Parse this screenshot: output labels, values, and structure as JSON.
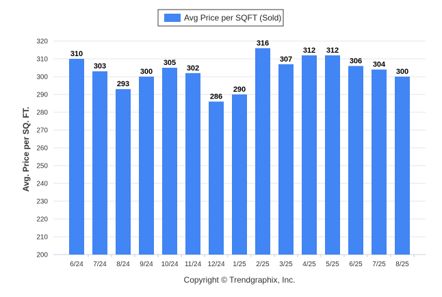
{
  "colors": {
    "bar": "#4285f4",
    "grid": "#e6e6e6",
    "axis_line": "#c0d0e0"
  },
  "chart_data": {
    "type": "bar",
    "categories": [
      "6/24",
      "7/24",
      "8/24",
      "9/24",
      "10/24",
      "11/24",
      "12/24",
      "1/25",
      "2/25",
      "3/25",
      "4/25",
      "5/25",
      "6/25",
      "7/25",
      "8/25"
    ],
    "series": [
      {
        "name": "Avg Price per SQFT (Sold)",
        "values": [
          310,
          303,
          293,
          300,
          305,
          302,
          286,
          290,
          316,
          307,
          312,
          312,
          306,
          304,
          300
        ]
      }
    ],
    "ylabel": "Avg. Price per SQ. FT.",
    "xlabel": "",
    "ylim": [
      200,
      320
    ],
    "yticks": [
      200,
      210,
      220,
      230,
      240,
      250,
      260,
      270,
      280,
      290,
      300,
      310,
      320
    ],
    "grid": true,
    "legend": "top-center",
    "data_labels": true
  },
  "footer": "Copyright © Trendgraphix, Inc."
}
